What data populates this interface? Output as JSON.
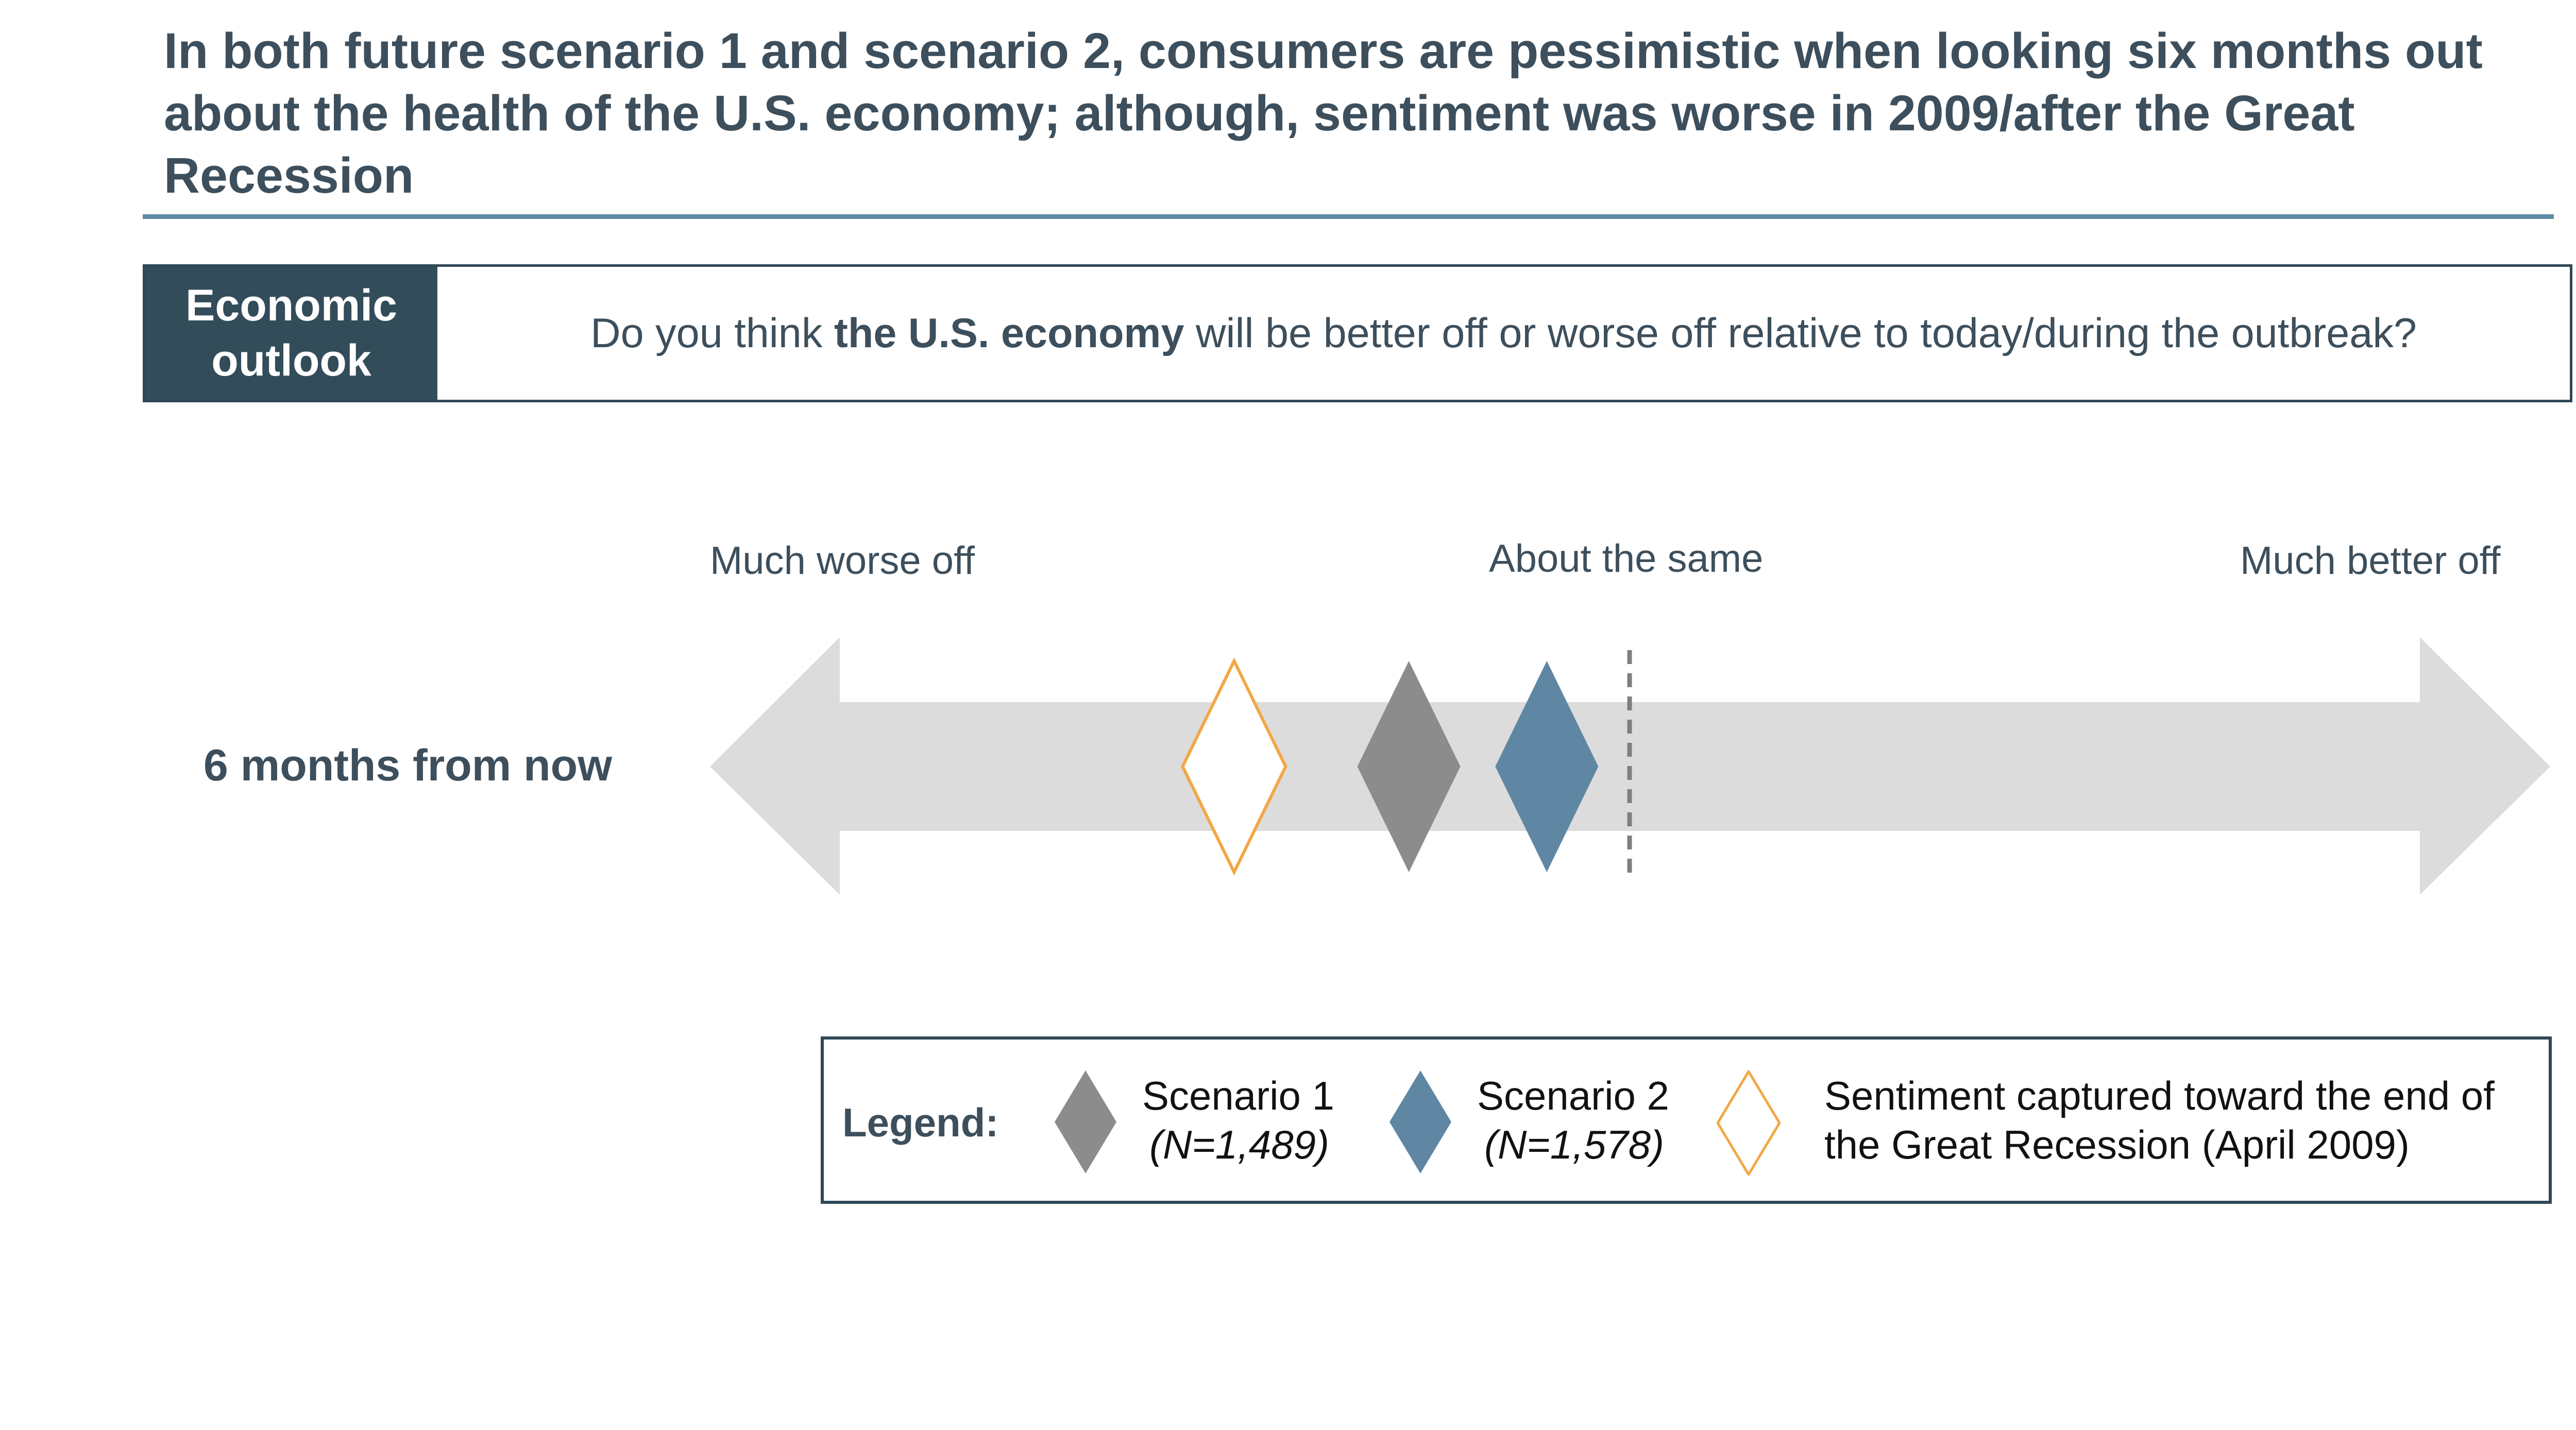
{
  "title": "In both future scenario 1 and scenario 2, consumers are pessimistic when looking six months out about the health of the U.S. economy; although, sentiment was worse in 2009/after the Great Recession",
  "question_tag": "Economic outlook",
  "question": {
    "prefix": "Do you think ",
    "bold": "the U.S. economy",
    "suffix": " will be better off or worse off relative to today/during the outbreak?"
  },
  "scale": {
    "left_label": "Much worse off",
    "mid_label": "About the same",
    "right_label": "Much better off",
    "min": -1,
    "mid": 0,
    "max": 1
  },
  "row_label": "6 months from now",
  "markers": [
    {
      "name": "Great Recession (April 2009)",
      "value": -0.43,
      "style": "outline",
      "color": "#f2a746"
    },
    {
      "name": "Scenario 1",
      "value": -0.24,
      "style": "filled",
      "color": "#8c8c8c"
    },
    {
      "name": "Scenario 2",
      "value": -0.09,
      "style": "filled",
      "color": "#5f87a3"
    }
  ],
  "legend": {
    "title": "Legend:",
    "items": [
      {
        "line1": "Scenario 1",
        "line2": "(N=1,489)",
        "color": "#8c8c8c",
        "style": "filled"
      },
      {
        "line1": "Scenario 2",
        "line2": "(N=1,578)",
        "color": "#5f87a3",
        "style": "filled"
      },
      {
        "line1": "Sentiment captured toward the end of",
        "line2": "the Great Recession (April 2009)",
        "color": "#f2a746",
        "style": "outline"
      }
    ]
  },
  "colors": {
    "arrow": "#dcdcdc",
    "midline": "#7f7f7f",
    "accent": "#334c5a"
  }
}
